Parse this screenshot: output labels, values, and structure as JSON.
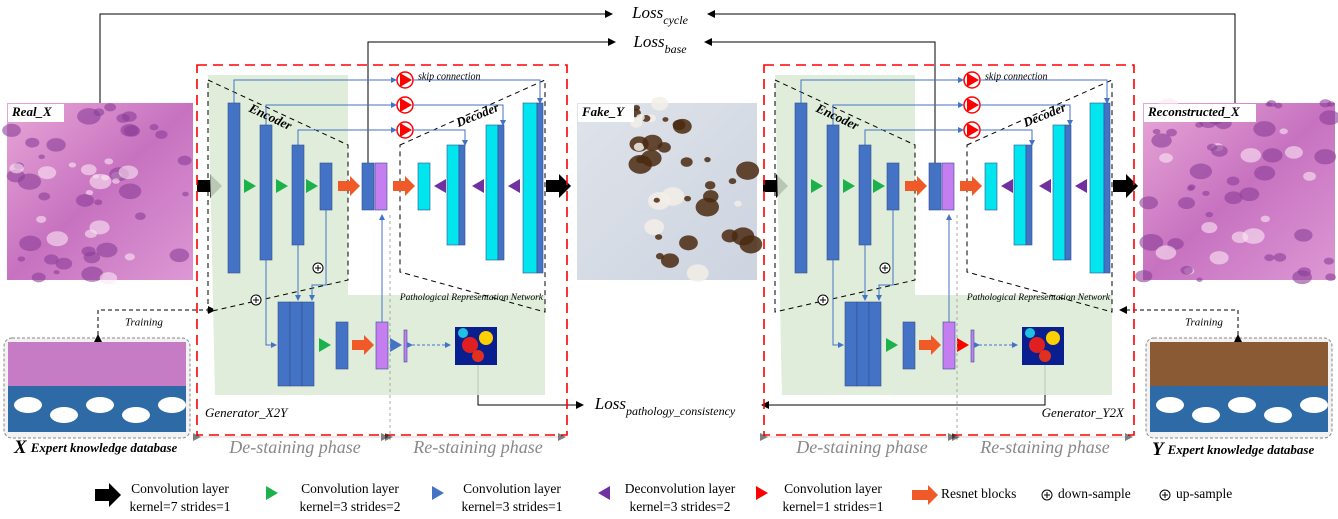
{
  "losses": [
    {
      "main": "Loss",
      "sub": "cycle"
    },
    {
      "main": "Loss",
      "sub": "base"
    },
    {
      "main": "Loss",
      "sub": "pathology_consistency"
    }
  ],
  "images": {
    "real": "Real_X",
    "fake": "Fake_Y",
    "reconstructed": "Reconstructed_X"
  },
  "generators": [
    {
      "name": "Generator_X2Y",
      "encoder": "Encoder",
      "decoder": "Decoder",
      "skip": "skip connection",
      "network": "Pathological Representation Network",
      "phases": [
        "De-staining phase",
        "Re-staining phase"
      ]
    },
    {
      "name": "Generator_Y2X",
      "encoder": "Encoder",
      "decoder": "Decoder",
      "skip": "skip connection",
      "network": "Pathological Representation Network",
      "phases": [
        "De-staining phase",
        "Re-staining phase"
      ]
    }
  ],
  "databases": [
    {
      "letter": "X",
      "label": "Expert knowledge database",
      "training": "Training"
    },
    {
      "letter": "Y",
      "label": "Expert knowledge database",
      "training": "Training"
    }
  ],
  "legend": [
    {
      "title": "Convolution layer",
      "detail": "kernel=7 strides=1"
    },
    {
      "title": "Convolution layer",
      "detail": "kernel=3 strides=2"
    },
    {
      "title": "Convolution layer",
      "detail": "kernel=3 strides=1"
    },
    {
      "title": "Deconvolution layer",
      "detail": "kernel=3 strides=2"
    },
    {
      "title": "Convolution layer",
      "detail": "kernel=1 strides=1"
    },
    {
      "title": "Resnet blocks"
    },
    {
      "title": "down-sample"
    },
    {
      "title": "up-sample"
    }
  ]
}
